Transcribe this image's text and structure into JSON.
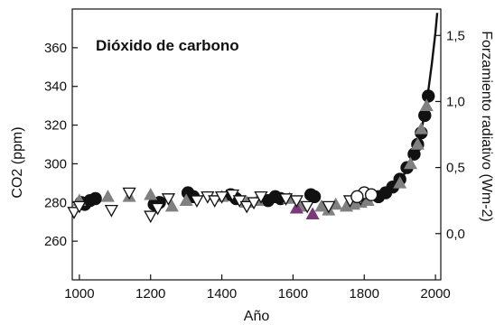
{
  "chart_data": {
    "type": "scatter",
    "title": "Dióxido de carbono",
    "xlabel": "Año",
    "ylabel_left": "CO2 (ppm)",
    "ylabel_right": "Forzamiento radiativo (Wm-2)",
    "xlim": [
      980,
      2015
    ],
    "ylim": [
      240,
      380
    ],
    "y2lim_forcing": [
      -0.35,
      1.7
    ],
    "x_ticks": [
      "1000",
      "1200",
      "1400",
      "1600",
      "1800",
      "2000"
    ],
    "y_ticks": [
      "260",
      "280",
      "300",
      "320",
      "340",
      "360"
    ],
    "y2_ticks": [
      "0,0",
      "0,5",
      "1,0",
      "1,5"
    ],
    "grid": false,
    "colors": {
      "black": "#111111",
      "gray": "#808080",
      "purple": "#7a3a7a",
      "hollow": "#ffffff"
    },
    "series": [
      {
        "marker": "circle",
        "color": "black",
        "points": [
          [
            1005,
            280
          ],
          [
            1015,
            279
          ],
          [
            1030,
            281
          ],
          [
            1045,
            282
          ],
          [
            1210,
            279
          ],
          [
            1225,
            280
          ],
          [
            1305,
            285
          ],
          [
            1320,
            283
          ],
          [
            1425,
            284
          ],
          [
            1440,
            282
          ],
          [
            1530,
            281
          ],
          [
            1550,
            283
          ],
          [
            1565,
            282
          ],
          [
            1650,
            284
          ],
          [
            1660,
            283
          ],
          [
            1800,
            282
          ],
          [
            1840,
            283
          ],
          [
            1860,
            285
          ],
          [
            1880,
            288
          ],
          [
            1900,
            292
          ],
          [
            1920,
            298
          ],
          [
            1940,
            305
          ],
          [
            1950,
            310
          ],
          [
            1960,
            316
          ],
          [
            1970,
            325
          ],
          [
            1980,
            335
          ]
        ]
      },
      {
        "marker": "triangle-up",
        "color": "gray",
        "points": [
          [
            1000,
            281
          ],
          [
            1080,
            283
          ],
          [
            1140,
            283
          ],
          [
            1200,
            284
          ],
          [
            1260,
            278
          ],
          [
            1300,
            281
          ],
          [
            1400,
            283
          ],
          [
            1470,
            280
          ],
          [
            1500,
            281
          ],
          [
            1590,
            282
          ],
          [
            1620,
            278
          ],
          [
            1680,
            278
          ],
          [
            1700,
            276
          ],
          [
            1720,
            279
          ],
          [
            1750,
            278
          ],
          [
            1770,
            279
          ],
          [
            1790,
            280
          ],
          [
            1810,
            281
          ],
          [
            1900,
            290
          ],
          [
            1930,
            300
          ],
          [
            1950,
            310
          ],
          [
            1960,
            318
          ],
          [
            1975,
            330
          ]
        ]
      },
      {
        "marker": "triangle-up",
        "color": "purple",
        "points": [
          [
            1610,
            277
          ],
          [
            1655,
            274
          ]
        ]
      },
      {
        "marker": "triangle-down",
        "color": "hollow",
        "points": [
          [
            985,
            275
          ],
          [
            1000,
            278
          ],
          [
            1090,
            276
          ],
          [
            1140,
            285
          ],
          [
            1200,
            273
          ],
          [
            1220,
            277
          ],
          [
            1250,
            282
          ],
          [
            1330,
            281
          ],
          [
            1360,
            283
          ],
          [
            1380,
            281
          ],
          [
            1400,
            283
          ],
          [
            1430,
            284
          ],
          [
            1450,
            281
          ],
          [
            1470,
            278
          ],
          [
            1490,
            280
          ],
          [
            1510,
            283
          ],
          [
            1580,
            282
          ],
          [
            1610,
            281
          ],
          [
            1640,
            278
          ],
          [
            1700,
            278
          ],
          [
            1760,
            281
          ],
          [
            1790,
            282
          ]
        ]
      },
      {
        "marker": "circle",
        "color": "hollow",
        "points": [
          [
            1800,
            285
          ],
          [
            1820,
            284
          ],
          [
            1780,
            283
          ]
        ]
      }
    ],
    "trend_line": {
      "x": [
        1750,
        1800,
        1830,
        1860,
        1880,
        1900,
        1920,
        1940,
        1950,
        1960,
        1970,
        1980,
        1990,
        2000,
        2005
      ],
      "y": [
        280,
        281,
        283,
        285,
        288,
        291,
        297,
        304,
        311,
        317,
        326,
        338,
        352,
        368,
        378
      ]
    }
  }
}
